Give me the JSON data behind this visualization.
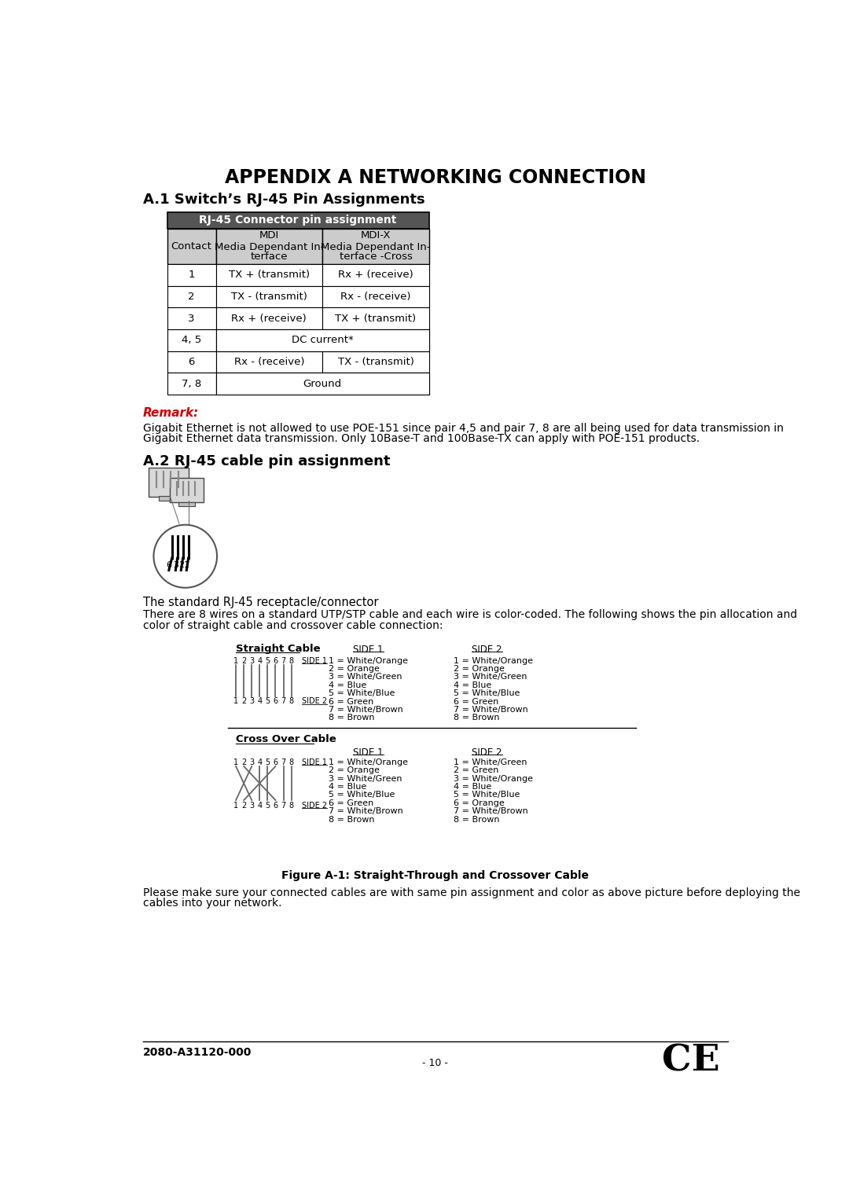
{
  "title": "APPENDIX A NETWORKING CONNECTION",
  "section1": "A.1 Switch’s RJ-45 Pin Assignments",
  "section2": "A.2 RJ-45 cable pin assignment",
  "table_header": "RJ-45 Connector pin assignment",
  "table_col1": "Contact",
  "table_col2_line1": "MDI",
  "table_col2_line2": "Media Dependant In-",
  "table_col2_line3": "terface",
  "table_col3_line1": "MDI-X",
  "table_col3_line2": "Media Dependant In-",
  "table_col3_line3": "terface -Cross",
  "table_rows": [
    [
      "1",
      "TX + (transmit)",
      "Rx + (receive)"
    ],
    [
      "2",
      "TX - (transmit)",
      "Rx - (receive)"
    ],
    [
      "3",
      "Rx + (receive)",
      "TX + (transmit)"
    ],
    [
      "4, 5",
      "DC current*",
      ""
    ],
    [
      "6",
      "Rx - (receive)",
      "TX - (transmit)"
    ],
    [
      "7, 8",
      "Ground",
      ""
    ]
  ],
  "remark_label": "Remark:",
  "remark_text": "Gigabit Ethernet is not allowed to use POE-151 since pair 4,5 and pair 7, 8 are all being used for data transmission in\nGigabit Ethernet data transmission. Only 10Base-T and 100Base-TX can apply with POE-151 products.",
  "connector_caption": "The standard RJ-45 receptacle/connector",
  "para_text": "There are 8 wires on a standard UTP/STP cable and each wire is color-coded. The following shows the pin allocation and\ncolor of straight cable and crossover cable connection:",
  "straight_cable_label": "Straight Cable",
  "cross_cable_label": "Cross Over Cable",
  "side1_label": "SIDE 1",
  "side2_label": "SIDE 2",
  "straight_side1": [
    "1 = White/Orange",
    "2 = Orange",
    "3 = White/Green",
    "4 = Blue",
    "5 = White/Blue",
    "6 = Green",
    "7 = White/Brown",
    "8 = Brown"
  ],
  "straight_side2": [
    "1 = White/Orange",
    "2 = Orange",
    "3 = White/Green",
    "4 = Blue",
    "5 = White/Blue",
    "6 = Green",
    "7 = White/Brown",
    "8 = Brown"
  ],
  "cross_side1": [
    "1 = White/Orange",
    "2 = Orange",
    "3 = White/Green",
    "4 = Blue",
    "5 = White/Blue",
    "6 = Green",
    "7 = White/Brown",
    "8 = Brown"
  ],
  "cross_side2": [
    "1 = White/Green",
    "2 = Green",
    "3 = White/Orange",
    "4 = Blue",
    "5 = White/Blue",
    "6 = Orange",
    "7 = White/Brown",
    "8 = Brown"
  ],
  "figure_caption": "Figure A-1: Straight-Through and Crossover Cable",
  "final_text": "Please make sure your connected cables are with same pin assignment and color as above picture before deploying the\ncables into your network.",
  "footer_left": "2080-A31120-000",
  "footer_right": "- 10 -",
  "bg_color": "#ffffff",
  "table_header_bg": "#555555",
  "table_header_fg": "#ffffff",
  "table_subheader_bg": "#cccccc",
  "table_border": "#000000",
  "remark_color": "#cc0000"
}
